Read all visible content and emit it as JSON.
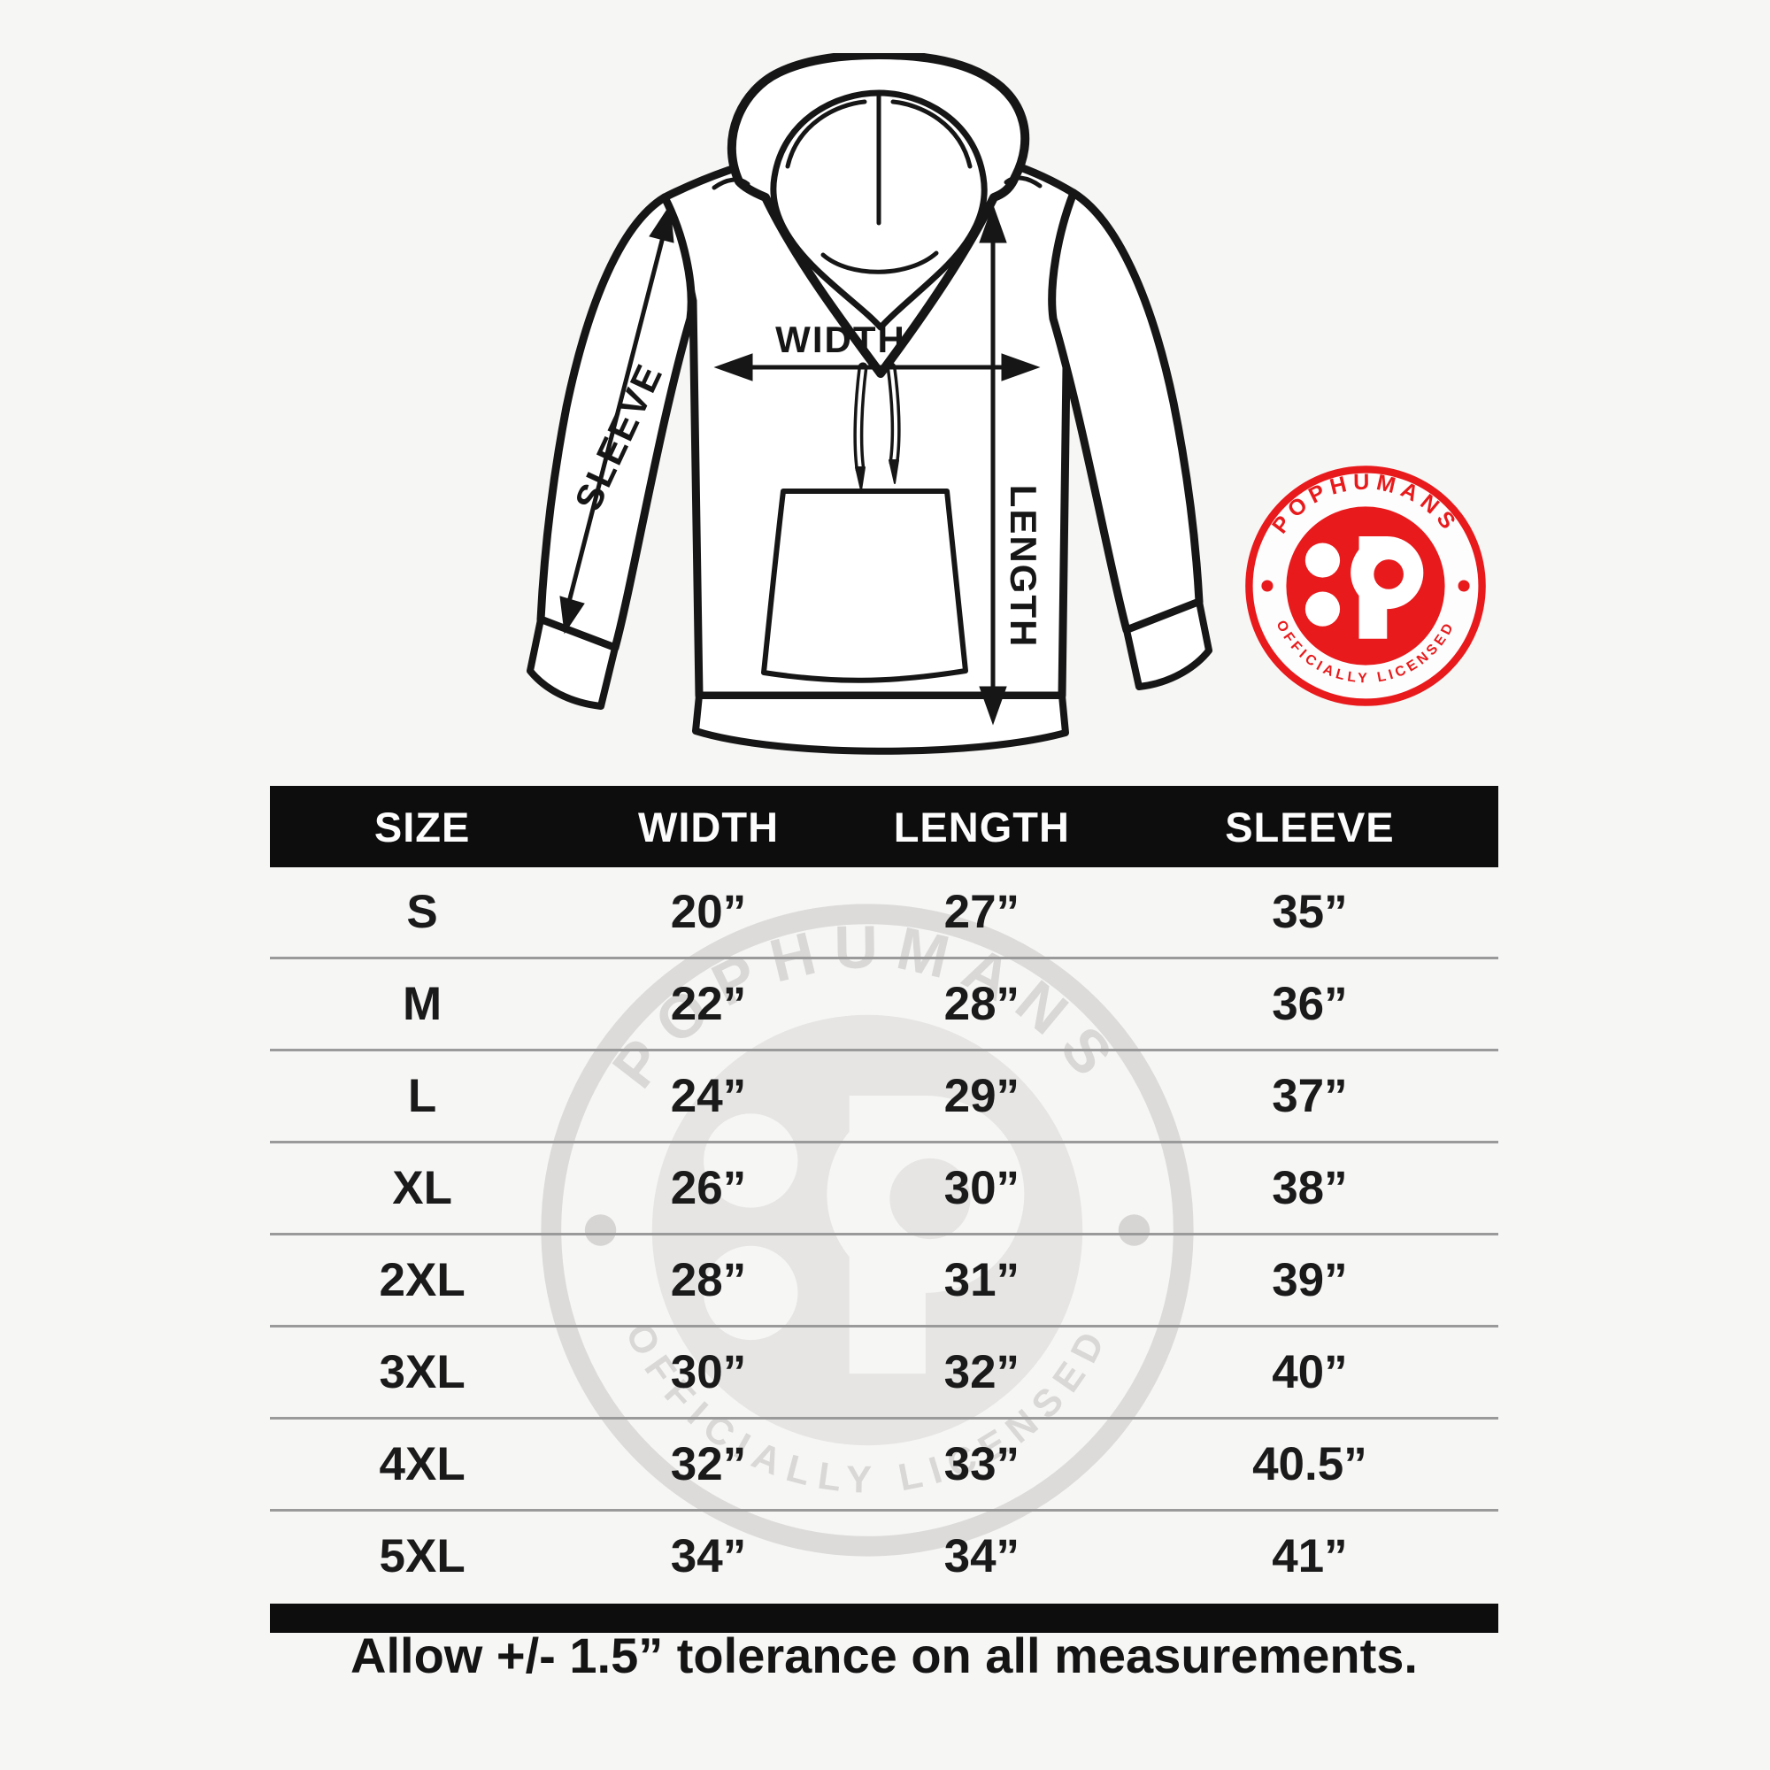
{
  "colors": {
    "background": "#f6f6f5",
    "line": "#161616",
    "accent_red": "#e81a1c",
    "header_bar": "#0d0d0d",
    "row_separator": "#9a9a9a",
    "watermark_gray": "#dcdbda"
  },
  "diagram": {
    "width_label": "WIDTH",
    "length_label": "LENGTH",
    "sleeve_label": "SLEEVE"
  },
  "badge": {
    "brand": "POPHUMANS",
    "license": "OFFICIALLY LICENSED",
    "monogram": "P"
  },
  "table": {
    "headers": [
      "SIZE",
      "WIDTH",
      "LENGTH",
      "SLEEVE"
    ],
    "rows": [
      [
        "S",
        "20”",
        "27”",
        "35”"
      ],
      [
        "M",
        "22”",
        "28”",
        "36”"
      ],
      [
        "L",
        "24”",
        "29”",
        "37”"
      ],
      [
        "XL",
        "26”",
        "30”",
        "38”"
      ],
      [
        "2XL",
        "28”",
        "31”",
        "39”"
      ],
      [
        "3XL",
        "30”",
        "32”",
        "40”"
      ],
      [
        "4XL",
        "32”",
        "33”",
        "40.5”"
      ],
      [
        "5XL",
        "34”",
        "34”",
        "41”"
      ]
    ]
  },
  "footer": {
    "note": "Allow +/- 1.5” tolerance on all measurements."
  }
}
